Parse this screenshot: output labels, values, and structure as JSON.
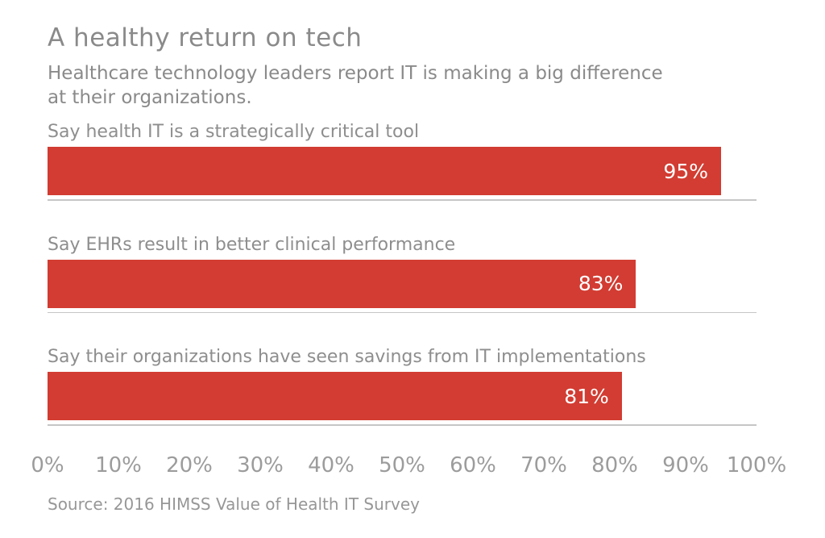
{
  "chart_data": {
    "type": "bar",
    "orientation": "horizontal",
    "title": "A healthy return on tech",
    "subtitle_lines": [
      "Healthcare technology leaders report IT is making a big difference",
      "at their organizations."
    ],
    "categories": [
      "Say health IT is a strategically critical tool",
      "Say EHRs result in better clinical performance",
      "Say their organizations have seen savings from IT implementations"
    ],
    "values": [
      95,
      83,
      81
    ],
    "value_labels": [
      "95%",
      "83%",
      "81%"
    ],
    "x_tick_labels": [
      "0%",
      "10%",
      "20%",
      "30%",
      "40%",
      "50%",
      "60%",
      "70%",
      "80%",
      "90%",
      "100%"
    ],
    "xlim": [
      0,
      100
    ],
    "grid": "off",
    "legend": "none",
    "bar_color": "#d23c32",
    "bar_value_text_color": "#ffffff",
    "title_color": "#8a8a8a",
    "label_color": "#8e8e8e",
    "tick_color": "#9c9c9c",
    "source": "Source: 2016 HIMSS Value of Health IT Survey"
  }
}
